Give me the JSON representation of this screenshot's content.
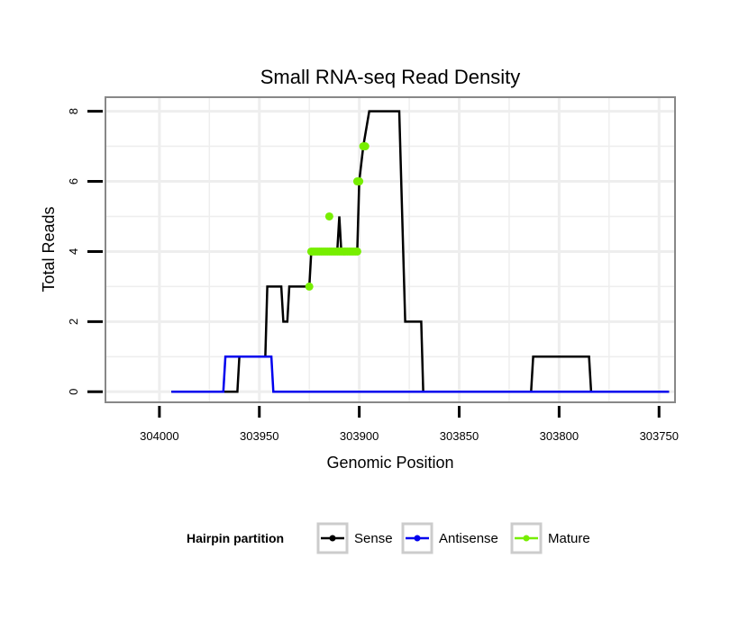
{
  "chart_data": {
    "type": "line",
    "title": "Small RNA-seq Read Density",
    "xlabel": "Genomic Position",
    "ylabel": "Total Reads",
    "x_reversed": true,
    "xlim": [
      304027,
      303742
    ],
    "ylim": [
      -0.3,
      8.4
    ],
    "x_ticks": [
      304000,
      303950,
      303900,
      303850,
      303800,
      303750
    ],
    "y_ticks": [
      0,
      2,
      4,
      6,
      8
    ],
    "grid": true,
    "legend": {
      "title": "Hairpin partition",
      "position": "bottom",
      "entries": [
        "Sense",
        "Antisense",
        "Mature"
      ]
    },
    "colors": {
      "Sense": "#000000",
      "Antisense": "#0000ee",
      "Mature": "#77ee00",
      "grid": "#eeeeee",
      "border": "#888888"
    },
    "series": [
      {
        "name": "Sense",
        "points": [
          [
            303994,
            0
          ],
          [
            303961,
            0
          ],
          [
            303960,
            1
          ],
          [
            303947,
            1
          ],
          [
            303946,
            3
          ],
          [
            303939,
            3
          ],
          [
            303938,
            2
          ],
          [
            303936,
            2
          ],
          [
            303935,
            3
          ],
          [
            303925,
            3
          ],
          [
            303924,
            4
          ],
          [
            303911,
            4
          ],
          [
            303910,
            5
          ],
          [
            303909,
            4
          ],
          [
            303901,
            4
          ],
          [
            303900,
            6
          ],
          [
            303898,
            7
          ],
          [
            303895,
            8
          ],
          [
            303880,
            8
          ],
          [
            303878,
            4
          ],
          [
            303877,
            2
          ],
          [
            303869,
            2
          ],
          [
            303868,
            0
          ],
          [
            303814,
            0
          ],
          [
            303813,
            1
          ],
          [
            303785,
            1
          ],
          [
            303784,
            0
          ],
          [
            303745,
            0
          ]
        ]
      },
      {
        "name": "Antisense",
        "points": [
          [
            303994,
            0
          ],
          [
            303968,
            0
          ],
          [
            303967,
            1
          ],
          [
            303944,
            1
          ],
          [
            303943,
            0
          ],
          [
            303745,
            0
          ]
        ]
      },
      {
        "name": "Mature",
        "points": [
          [
            303925,
            3
          ],
          [
            303924,
            4
          ],
          [
            303923,
            4
          ],
          [
            303922,
            4
          ],
          [
            303921,
            4
          ],
          [
            303920,
            4
          ],
          [
            303919,
            4
          ],
          [
            303918,
            4
          ],
          [
            303917,
            4
          ],
          [
            303916,
            4
          ],
          [
            303915,
            4
          ],
          [
            303914,
            4
          ],
          [
            303913,
            4
          ],
          [
            303912,
            4
          ],
          [
            303911,
            4
          ],
          [
            303910,
            4
          ],
          [
            303909,
            4
          ],
          [
            303908,
            4
          ],
          [
            303907,
            4
          ],
          [
            303906,
            4
          ],
          [
            303905,
            4
          ],
          [
            303904,
            4
          ],
          [
            303903,
            4
          ],
          [
            303902,
            4
          ],
          [
            303901,
            4
          ],
          [
            303915,
            5
          ],
          [
            303901,
            6
          ],
          [
            303900,
            6
          ],
          [
            303898,
            7
          ],
          [
            303897,
            7
          ]
        ]
      }
    ]
  }
}
